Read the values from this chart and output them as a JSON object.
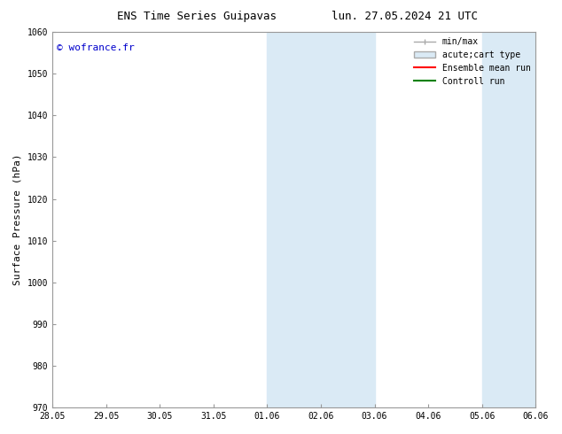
{
  "title_left": "ENS Time Series Guipavas",
  "title_right": "lun. 27.05.2024 21 UTC",
  "ylabel": "Surface Pressure (hPa)",
  "ylim": [
    970,
    1060
  ],
  "yticks": [
    970,
    980,
    990,
    1000,
    1010,
    1020,
    1030,
    1040,
    1050,
    1060
  ],
  "xtick_labels": [
    "28.05",
    "29.05",
    "30.05",
    "31.05",
    "01.06",
    "02.06",
    "03.06",
    "04.06",
    "05.06",
    "06.06"
  ],
  "xtick_positions": [
    0,
    1,
    2,
    3,
    4,
    5,
    6,
    7,
    8,
    9
  ],
  "xlim": [
    0,
    9
  ],
  "shaded_regions": [
    {
      "xmin": 4,
      "xmax": 5
    },
    {
      "xmin": 5,
      "xmax": 6
    },
    {
      "xmin": 8,
      "xmax": 9
    }
  ],
  "shaded_color": "#daeaf5",
  "watermark": "© wofrance.fr",
  "watermark_color": "#0000cc",
  "legend_items": [
    {
      "label": "min/max",
      "color": "#aaaaaa",
      "type": "minmax"
    },
    {
      "label": "acute;cart type",
      "color": "#daeaf5",
      "type": "box"
    },
    {
      "label": "Ensemble mean run",
      "color": "#ff0000",
      "type": "line"
    },
    {
      "label": "Controll run",
      "color": "#008000",
      "type": "line"
    }
  ],
  "bg_color": "#ffffff",
  "grid_color": "#cccccc",
  "title_fontsize": 9,
  "tick_fontsize": 7,
  "ylabel_fontsize": 8,
  "legend_fontsize": 7,
  "watermark_fontsize": 8
}
